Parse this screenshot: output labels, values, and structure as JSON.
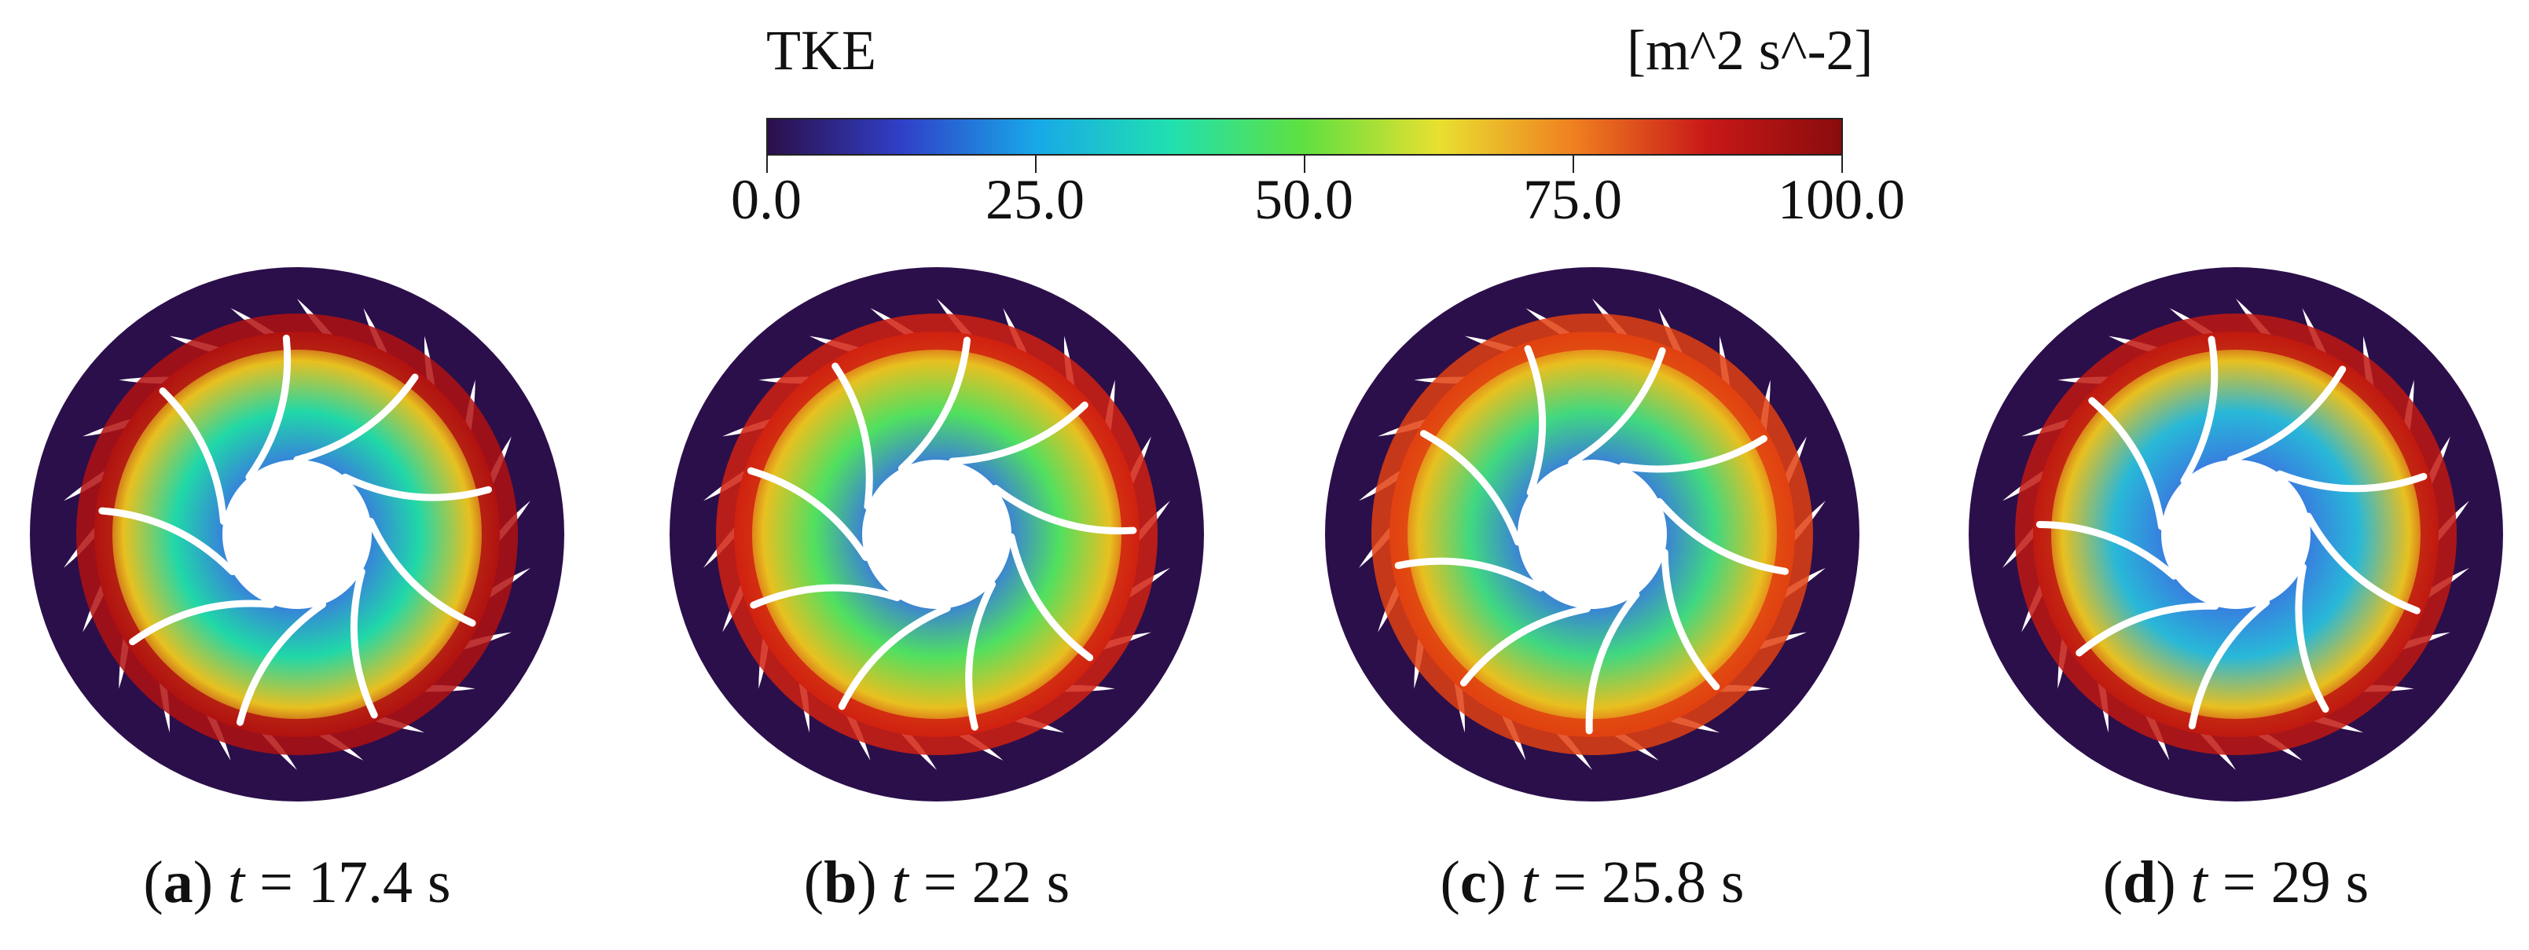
{
  "colorbar": {
    "variable": "TKE",
    "unit": "[m^2 s^-2]",
    "min": 0,
    "max": 100,
    "ticks": [
      "0.0",
      "25.0",
      "50.0",
      "75.0",
      "100.0"
    ],
    "colors": [
      "#2b0f4a",
      "#3040c8",
      "#18a8e8",
      "#20e0b0",
      "#60e040",
      "#e8e030",
      "#f08020",
      "#c81818",
      "#8a0c0c"
    ]
  },
  "panels": [
    {
      "id": "a",
      "label": "a",
      "time_var": "t",
      "time_text": " = 17.4 s",
      "time_value": 17.4,
      "colors": {
        "outer_ring": "#2b0f4a",
        "stator_ring": "#b01010",
        "core": "#20d8a8",
        "hub": "#ffffff"
      }
    },
    {
      "id": "b",
      "label": "b",
      "time_var": "t",
      "time_text": " = 22 s",
      "time_value": 22,
      "colors": {
        "outer_ring": "#2b0f4a",
        "stator_ring": "#d02010",
        "core": "#50e060",
        "hub": "#ffffff"
      }
    },
    {
      "id": "c",
      "label": "c",
      "time_var": "t",
      "time_text": " = 25.8 s",
      "time_value": 25.8,
      "colors": {
        "outer_ring": "#2b0f4a",
        "stator_ring": "#e04010",
        "core": "#40d880",
        "hub": "#ffffff"
      }
    },
    {
      "id": "d",
      "label": "d",
      "time_var": "t",
      "time_text": " = 29 s",
      "time_value": 29,
      "colors": {
        "outer_ring": "#2b0f4a",
        "stator_ring": "#c01810",
        "core": "#28b8d8",
        "hub": "#ffffff"
      }
    }
  ],
  "geometry_counts": {
    "guide_vanes": 22,
    "impeller_blades": 9
  }
}
